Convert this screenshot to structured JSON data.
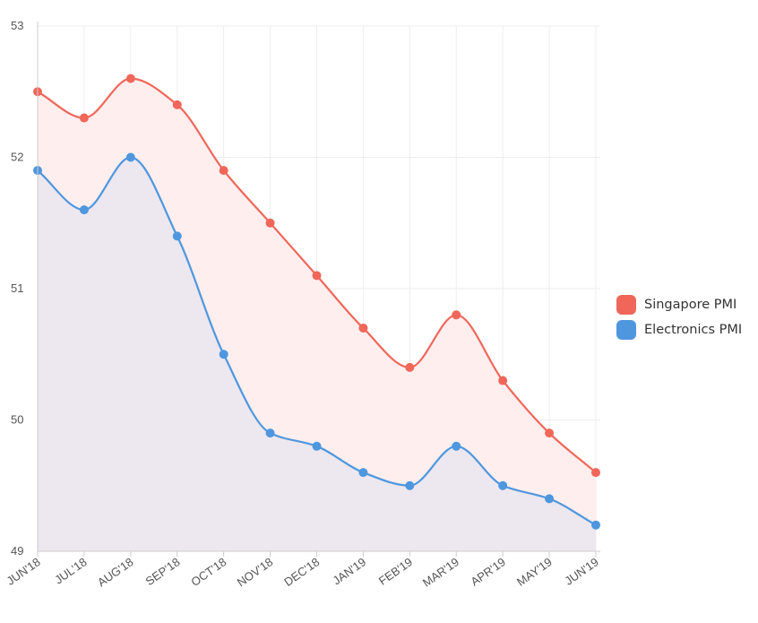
{
  "chart_data": {
    "type": "area",
    "title": "",
    "xlabel": "",
    "ylabel": "",
    "categories": [
      "JUN'18",
      "JUL'18",
      "AUG'18",
      "SEP'18",
      "OCT'18",
      "NOV'18",
      "DEC'18",
      "JAN'19",
      "FEB'19",
      "MAR'19",
      "APR'19",
      "MAY'19",
      "JUN'19"
    ],
    "ylim": [
      49,
      53
    ],
    "yticks": [
      "49",
      "50",
      "51",
      "52",
      "53"
    ],
    "grid": true,
    "legend_position": "right",
    "series": [
      {
        "name": "Singapore PMI",
        "color": "#f0675a",
        "fill": "#ffeeee",
        "values": [
          52.5,
          52.3,
          52.6,
          52.4,
          51.9,
          51.5,
          51.1,
          50.7,
          50.4,
          50.8,
          50.3,
          49.9,
          49.6
        ]
      },
      {
        "name": "Electronics PMI",
        "color": "#4e97de",
        "fill": "#ede7ef",
        "values": [
          51.9,
          51.6,
          52.0,
          51.4,
          50.5,
          49.9,
          49.8,
          49.6,
          49.5,
          49.8,
          49.5,
          49.4,
          49.2
        ]
      }
    ]
  }
}
